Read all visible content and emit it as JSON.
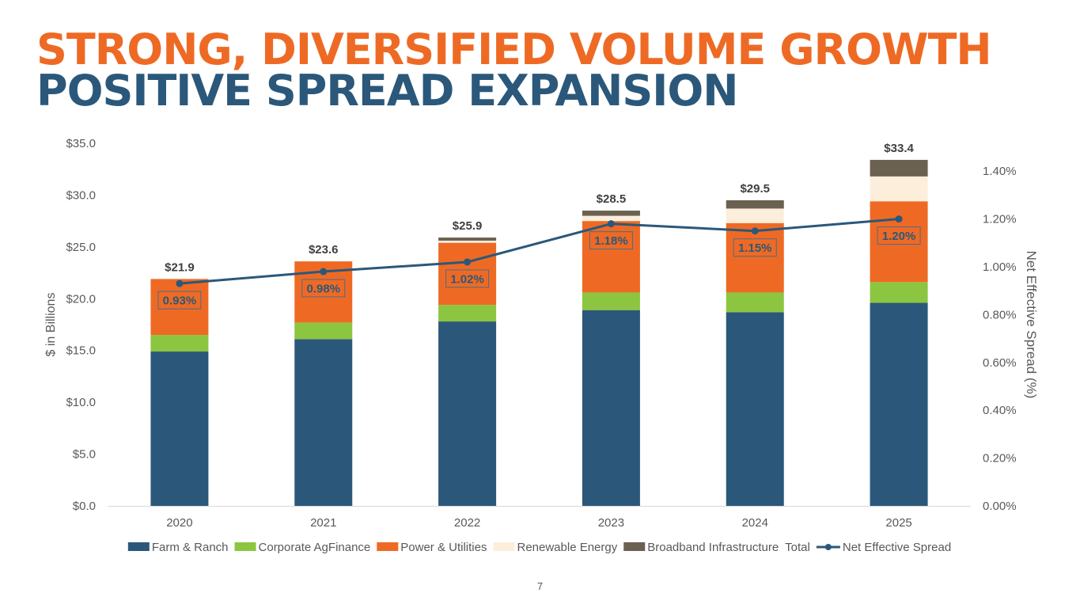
{
  "slide": {
    "title_line1": "STRONG, DIVERSIFIED VOLUME GROWTH",
    "title_line2": "POSITIVE SPREAD EXPANSION",
    "page_number": "7"
  },
  "chart_data": {
    "type": "bar",
    "stacked": true,
    "categories": [
      "2020",
      "2021",
      "2022",
      "2023",
      "2024",
      "2025"
    ],
    "series": [
      {
        "name": "Farm & Ranch",
        "color": "#2B587A",
        "values": [
          14.9,
          16.1,
          17.8,
          18.9,
          18.7,
          19.6
        ]
      },
      {
        "name": "Corporate AgFinance",
        "color": "#8CC540",
        "values": [
          1.6,
          1.6,
          1.6,
          1.7,
          1.9,
          2.0
        ]
      },
      {
        "name": "Power & Utilities",
        "color": "#EE6A24",
        "values": [
          5.4,
          5.9,
          6.0,
          6.9,
          6.7,
          7.8
        ]
      },
      {
        "name": "Renewable Energy",
        "color": "#FDEEDC",
        "values": [
          0.0,
          0.0,
          0.2,
          0.5,
          1.4,
          2.4
        ]
      },
      {
        "name": "Broadband Infrastructure",
        "color": "#6B6151",
        "values": [
          0.0,
          0.0,
          0.3,
          0.5,
          0.8,
          1.6
        ]
      }
    ],
    "totals": {
      "name": "Total",
      "labels": [
        "$21.9",
        "$23.6",
        "$25.9",
        "$28.5",
        "$29.5",
        "$33.4"
      ],
      "values": [
        21.9,
        23.6,
        25.9,
        28.5,
        29.5,
        33.4
      ]
    },
    "line_series": {
      "name": "Net Effective Spread",
      "color": "#2B587A",
      "values": [
        0.93,
        0.98,
        1.02,
        1.18,
        1.15,
        1.2
      ],
      "labels": [
        "0.93%",
        "0.98%",
        "1.02%",
        "1.18%",
        "1.15%",
        "1.20%"
      ]
    },
    "ylabel": "$ in Billions",
    "ylim": [
      0,
      35
    ],
    "yticks": [
      "$0.0",
      "$5.0",
      "$10.0",
      "$15.0",
      "$20.0",
      "$25.0",
      "$30.0",
      "$35.0"
    ],
    "y2label": "Net Effective Spread (%)",
    "y2lim": [
      0,
      1.5
    ],
    "y2ticks": [
      "0.00%",
      "0.20%",
      "0.40%",
      "0.60%",
      "0.80%",
      "1.00%",
      "1.20%",
      "1.40%"
    ],
    "legend_position": "bottom"
  }
}
